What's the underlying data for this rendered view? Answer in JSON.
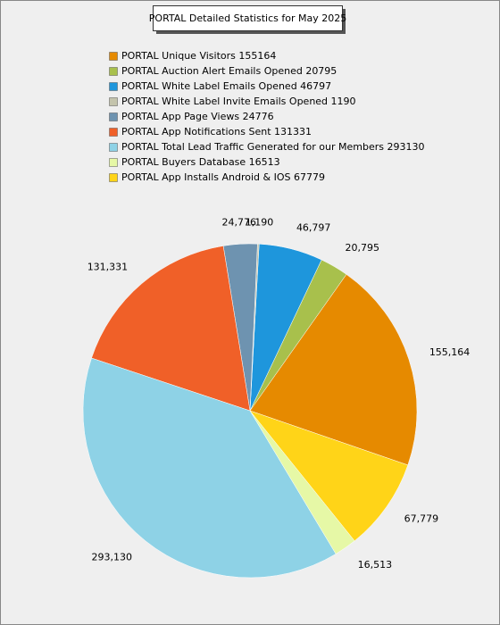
{
  "chart_data": {
    "type": "pie",
    "title": "PORTAL Detailed Statistics for May 2025",
    "categories": [
      "PORTAL Unique Visitors 155164",
      "PORTAL Auction Alert Emails Opened 20795",
      "PORTAL White Label Emails Opened 46797",
      "PORTAL White Label Invite Emails Opened 1190",
      "PORTAL App Page Views 24776",
      "PORTAL App Notifications Sent 131331",
      "PORTAL Total Lead Traffic Generated for our Members 293130",
      "PORTAL Buyers Database 16513",
      "PORTAL App Installs Android & IOS 67779"
    ],
    "values": [
      155164,
      20795,
      46797,
      1190,
      24776,
      131331,
      293130,
      16513,
      67779
    ],
    "value_labels": [
      "155,164",
      "20,795",
      "46,797",
      "1,190",
      "24,776",
      "131,331",
      "293,130",
      "16,513",
      "67,779"
    ],
    "colors": [
      "#e68a00",
      "#a8c04c",
      "#1e96dc",
      "#c4c4ac",
      "#6e93b0",
      "#f06028",
      "#8ed2e6",
      "#e6f8a6",
      "#ffd418"
    ],
    "legend": "top"
  }
}
